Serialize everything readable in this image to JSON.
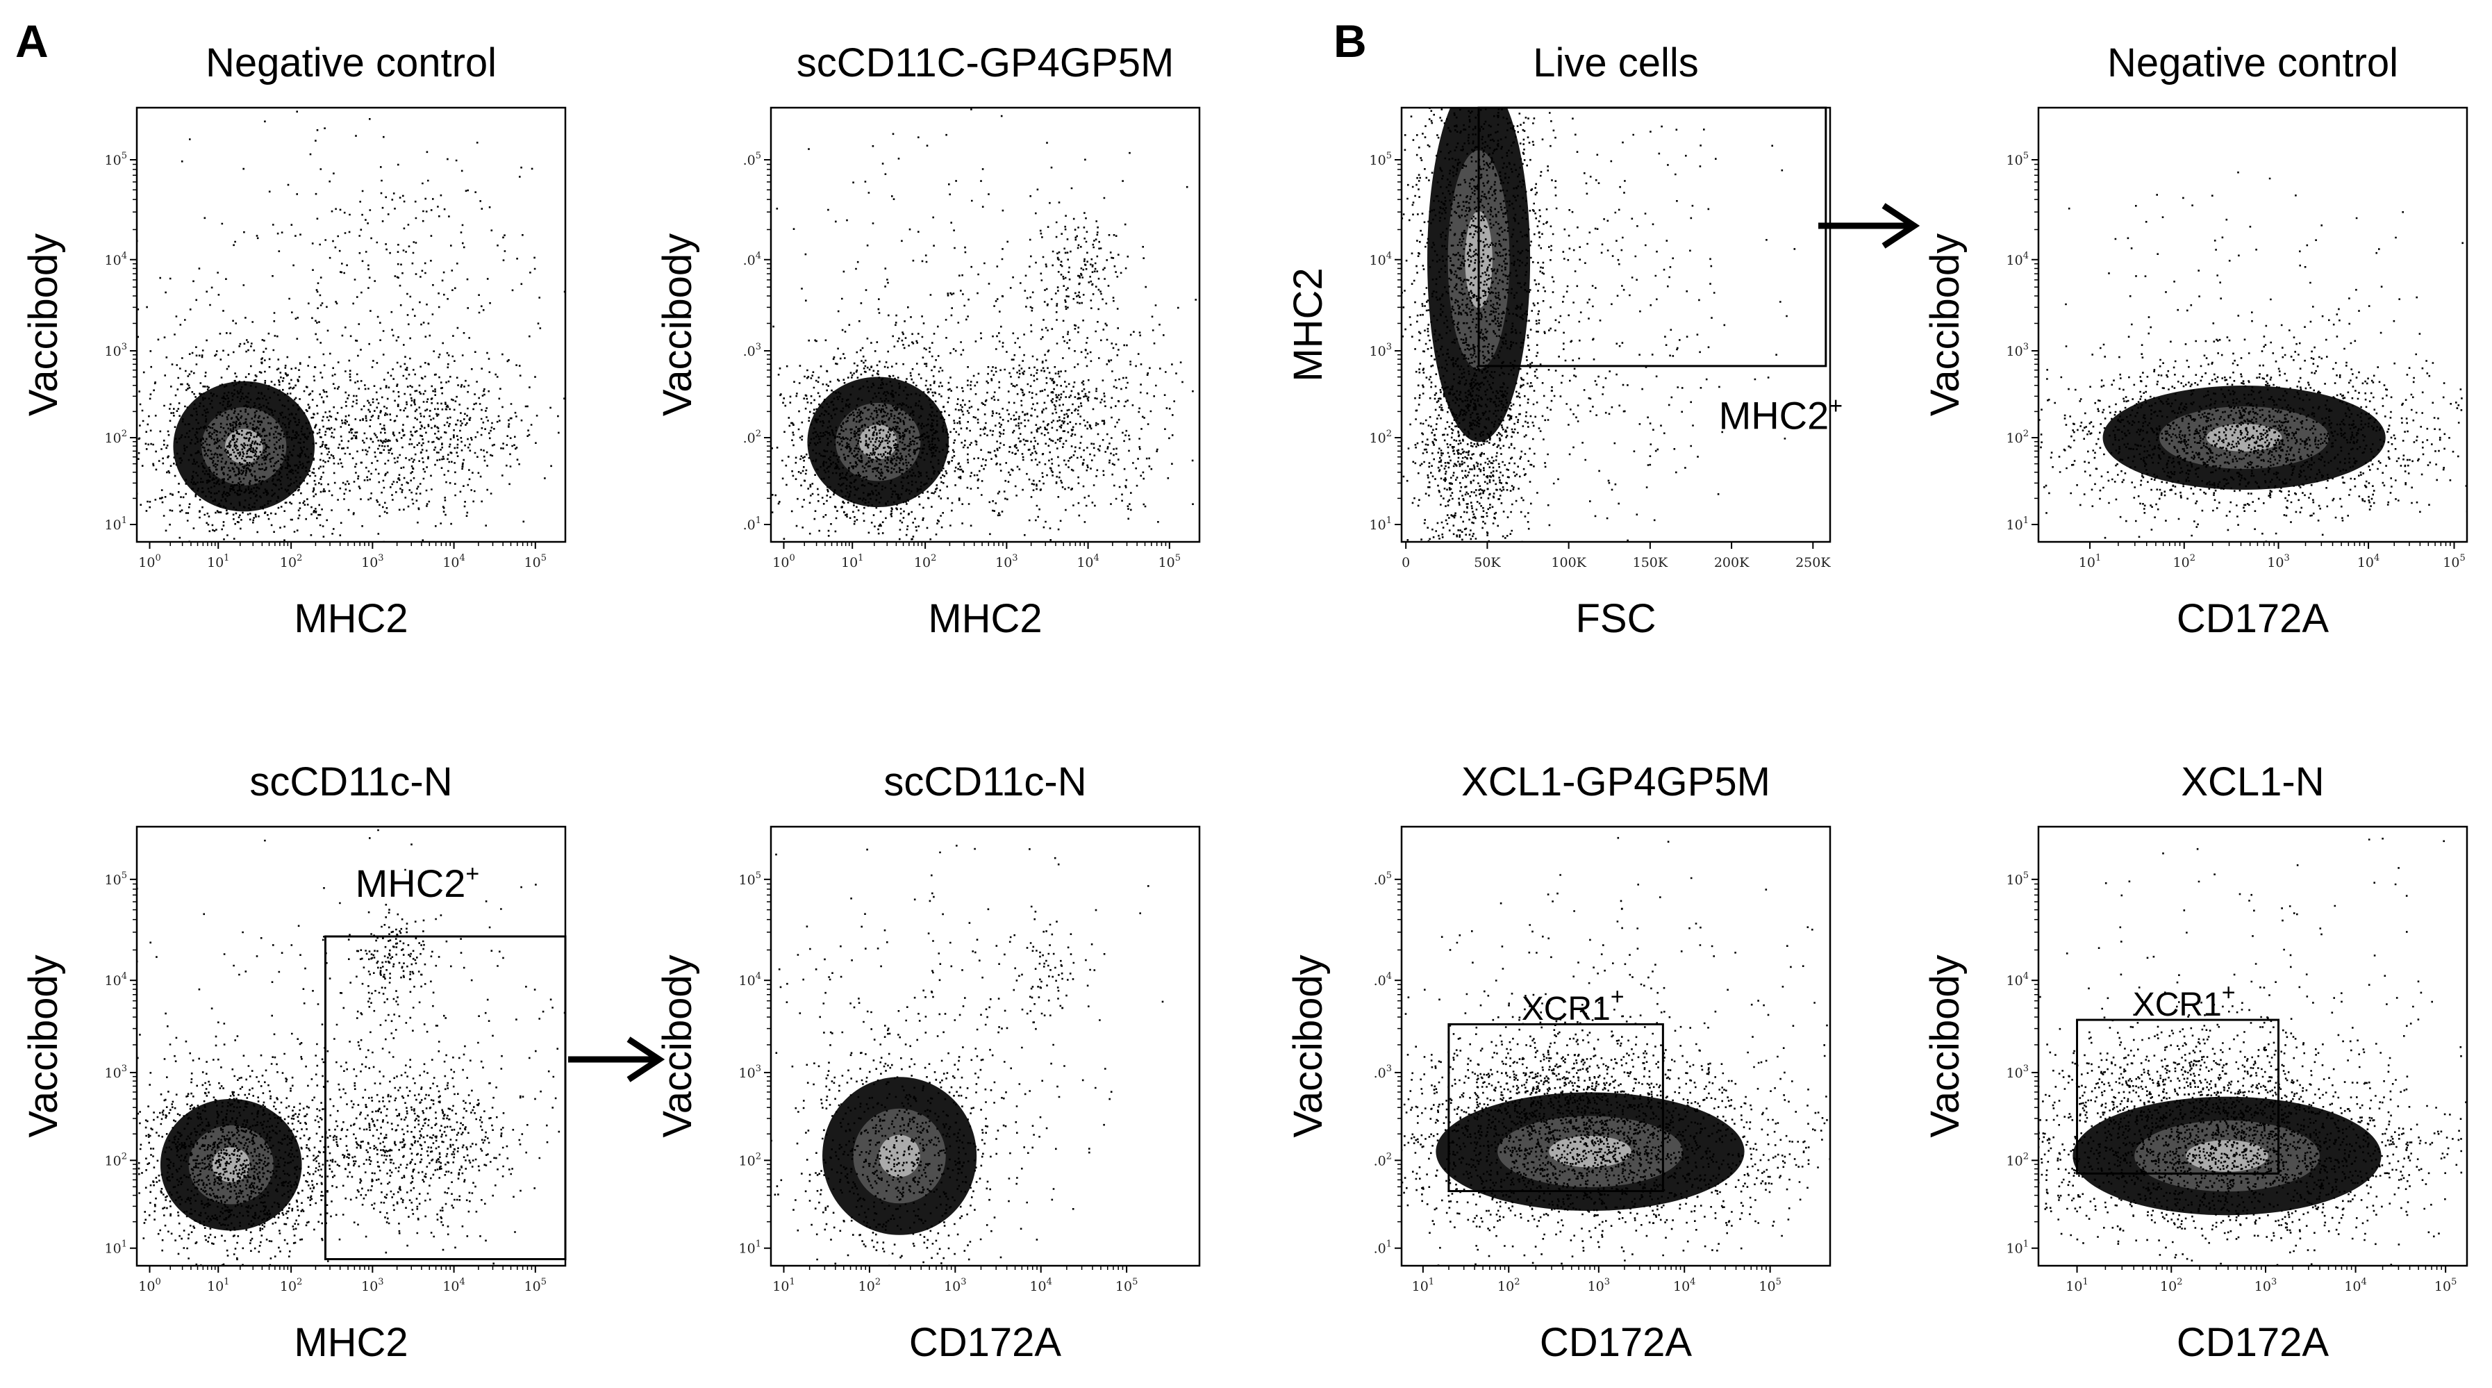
{
  "figure": {
    "panel_labels": [
      "A",
      "B"
    ]
  },
  "chart_data": [
    {
      "id": "a1",
      "type": "scatter",
      "title": "Negative control",
      "xlabel": "MHC2",
      "ylabel": "Vaccibody",
      "xscale": "log",
      "yscale": "log",
      "x_ticks": [
        {
          "b": "10",
          "e": "0"
        },
        {
          "b": "10",
          "e": "1"
        },
        {
          "b": "10",
          "e": "2"
        },
        {
          "b": "10",
          "e": "3"
        },
        {
          "b": "10",
          "e": "4"
        },
        {
          "b": "10",
          "e": "5"
        }
      ],
      "y_ticks": [
        {
          "b": "10",
          "e": "1"
        },
        {
          "b": "10",
          "e": "2"
        },
        {
          "b": "10",
          "e": "3"
        },
        {
          "b": "10",
          "e": "4"
        },
        {
          "b": "10",
          "e": "5"
        }
      ],
      "gates": []
    },
    {
      "id": "a2",
      "type": "scatter",
      "title": "scCD11C-GP4GP5M",
      "xlabel": "MHC2",
      "ylabel": "Vaccibody",
      "xscale": "log",
      "yscale": "log",
      "x_ticks": [
        {
          "b": "10",
          "e": "0"
        },
        {
          "b": "10",
          "e": "1"
        },
        {
          "b": "10",
          "e": "2"
        },
        {
          "b": "10",
          "e": "3"
        },
        {
          "b": "10",
          "e": "4"
        },
        {
          "b": "10",
          "e": "5"
        }
      ],
      "y_ticks": [
        {
          "b": ".0",
          "e": "1"
        },
        {
          "b": ".0",
          "e": "2"
        },
        {
          "b": ".0",
          "e": "3"
        },
        {
          "b": ".0",
          "e": "4"
        },
        {
          "b": ".0",
          "e": "5"
        }
      ],
      "gates": []
    },
    {
      "id": "b1",
      "type": "scatter",
      "title": "Live cells",
      "xlabel": "FSC",
      "ylabel": "MHC2",
      "xscale": "linear",
      "yscale": "log",
      "x_ticks": [
        {
          "b": "0"
        },
        {
          "b": "50K"
        },
        {
          "b": "100K"
        },
        {
          "b": "150K"
        },
        {
          "b": "200K"
        },
        {
          "b": "250K"
        }
      ],
      "y_ticks": [
        {
          "b": "10",
          "e": "1"
        },
        {
          "b": "10",
          "e": "2"
        },
        {
          "b": "10",
          "e": "3"
        },
        {
          "b": "10",
          "e": "4"
        },
        {
          "b": "10",
          "e": "5"
        }
      ],
      "gates": [
        {
          "label": "MHC2",
          "sup": "+"
        }
      ]
    },
    {
      "id": "b2",
      "type": "scatter",
      "title": "Negative control",
      "xlabel": "CD172A",
      "ylabel": "Vaccibody",
      "xscale": "log",
      "yscale": "log",
      "x_ticks": [
        {
          "b": "10",
          "e": "1"
        },
        {
          "b": "10",
          "e": "2"
        },
        {
          "b": "10",
          "e": "3"
        },
        {
          "b": "10",
          "e": "4"
        },
        {
          "b": "10",
          "e": "5"
        }
      ],
      "y_ticks": [
        {
          "b": "10",
          "e": "1"
        },
        {
          "b": "10",
          "e": "2"
        },
        {
          "b": "10",
          "e": "3"
        },
        {
          "b": "10",
          "e": "4"
        },
        {
          "b": "10",
          "e": "5"
        }
      ],
      "gates": []
    },
    {
      "id": "a3",
      "type": "scatter",
      "title": "scCD11c-N",
      "xlabel": "MHC2",
      "ylabel": "Vaccibody",
      "xscale": "log",
      "yscale": "log",
      "x_ticks": [
        {
          "b": "10",
          "e": "0"
        },
        {
          "b": "10",
          "e": "1"
        },
        {
          "b": "10",
          "e": "2"
        },
        {
          "b": "10",
          "e": "3"
        },
        {
          "b": "10",
          "e": "4"
        },
        {
          "b": "10",
          "e": "5"
        }
      ],
      "y_ticks": [
        {
          "b": "10",
          "e": "1"
        },
        {
          "b": "10",
          "e": "2"
        },
        {
          "b": "10",
          "e": "3"
        },
        {
          "b": "10",
          "e": "4"
        },
        {
          "b": "10",
          "e": "5"
        }
      ],
      "gates": [
        {
          "label": "MHC2",
          "sup": "+"
        }
      ]
    },
    {
      "id": "a4",
      "type": "scatter",
      "title": "scCD11c-N",
      "xlabel": "CD172A",
      "ylabel": "Vaccibody",
      "xscale": "log",
      "yscale": "log",
      "x_ticks": [
        {
          "b": "10",
          "e": "1"
        },
        {
          "b": "10",
          "e": "2"
        },
        {
          "b": "10",
          "e": "3"
        },
        {
          "b": "10",
          "e": "4"
        },
        {
          "b": "10",
          "e": "5"
        }
      ],
      "y_ticks": [
        {
          "b": "10",
          "e": "1"
        },
        {
          "b": "10",
          "e": "2"
        },
        {
          "b": "10",
          "e": "3"
        },
        {
          "b": "10",
          "e": "4"
        },
        {
          "b": "10",
          "e": "5"
        }
      ],
      "gates": []
    },
    {
      "id": "b3",
      "type": "scatter",
      "title": "XCL1-GP4GP5M",
      "xlabel": "CD172A",
      "ylabel": "Vaccibody",
      "xscale": "log",
      "yscale": "log",
      "x_ticks": [
        {
          "b": "10",
          "e": "1"
        },
        {
          "b": "10",
          "e": "2"
        },
        {
          "b": "10",
          "e": "3"
        },
        {
          "b": "10",
          "e": "4"
        },
        {
          "b": "10",
          "e": "5"
        }
      ],
      "y_ticks": [
        {
          "b": ".0",
          "e": "1"
        },
        {
          "b": ".0",
          "e": "2"
        },
        {
          "b": ".0",
          "e": "3"
        },
        {
          "b": ".0",
          "e": "4"
        },
        {
          "b": ".0",
          "e": "5"
        }
      ],
      "gates": [
        {
          "label": "XCR1",
          "sup": "+"
        }
      ]
    },
    {
      "id": "b4",
      "type": "scatter",
      "title": "XCL1-N",
      "xlabel": "CD172A",
      "ylabel": "Vaccibody",
      "xscale": "log",
      "yscale": "log",
      "x_ticks": [
        {
          "b": "10",
          "e": "1"
        },
        {
          "b": "10",
          "e": "2"
        },
        {
          "b": "10",
          "e": "3"
        },
        {
          "b": "10",
          "e": "4"
        },
        {
          "b": "10",
          "e": "5"
        }
      ],
      "y_ticks": [
        {
          "b": "10",
          "e": "1"
        },
        {
          "b": "10",
          "e": "2"
        },
        {
          "b": "10",
          "e": "3"
        },
        {
          "b": "10",
          "e": "4"
        },
        {
          "b": "10",
          "e": "5"
        }
      ],
      "gates": [
        {
          "label": "XCR1",
          "sup": "+"
        }
      ]
    }
  ]
}
